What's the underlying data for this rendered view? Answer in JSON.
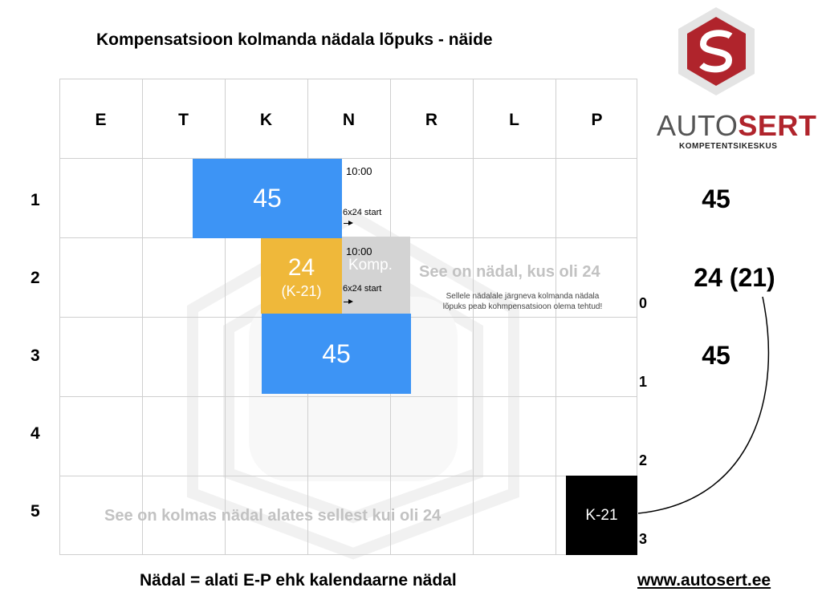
{
  "title": "Kompensatsioon kolmanda nädala lõpuks - näide",
  "days": [
    "E",
    "T",
    "K",
    "N",
    "R",
    "L",
    "P"
  ],
  "weeks": [
    "1",
    "2",
    "3",
    "4",
    "5"
  ],
  "blocks": {
    "week1_rest": "45",
    "week2_rest": "24",
    "week2_rest_sub": "(K-21)",
    "week3_rest": "45",
    "komp": "Komp.",
    "k21": "K-21"
  },
  "annotations": {
    "time1": "10:00",
    "start1": "6x24 start",
    "time2": "10:00",
    "start2": "6x24 start",
    "week_note": "See on nädal, kus oli 24",
    "week_note_sub1": "Sellele nädalale järgneva kolmanda nädala",
    "week_note_sub2": "lõpuks peab kohmpensatsioon olema tehtud!",
    "third_week_note": "See on kolmas nädal alates sellest kui oli 24"
  },
  "counters": [
    "0",
    "1",
    "2",
    "3"
  ],
  "totals": [
    "45",
    "24 (21)",
    "45"
  ],
  "logo": {
    "word_a": "AUTO",
    "word_b": "SERT",
    "tagline": "KOMPETENTSIKESKUS",
    "red": "#b0242c",
    "gray": "#555555"
  },
  "footer": {
    "note": "Nädal = alati E-P ehk kalendaarne nädal",
    "url": "www.autosert.ee"
  }
}
